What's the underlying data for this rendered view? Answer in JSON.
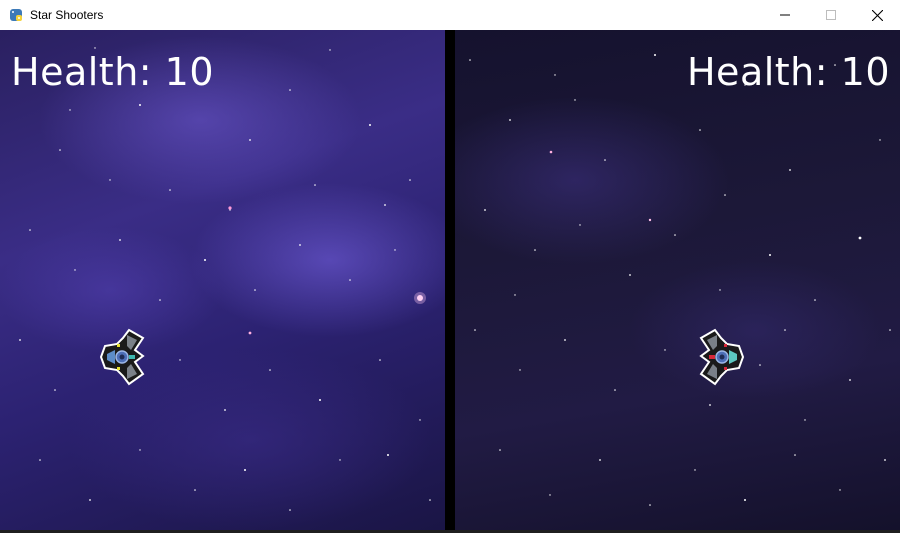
{
  "window": {
    "title": "Star Shooters",
    "icon": "python-icon",
    "controls": [
      "minimize-icon",
      "maximize-icon",
      "close-icon"
    ]
  },
  "game": {
    "player_left": {
      "health_text": "Health: 10",
      "ship_icon": "yellow-spaceship-icon",
      "accent_color": "#e8e230"
    },
    "player_right": {
      "health_text": "Health: 10",
      "ship_icon": "red-spaceship-icon",
      "accent_color": "#d6283a"
    },
    "colors": {
      "divider": "#000000",
      "text": "#ffffff",
      "left_background": "#3a2d86",
      "right_background": "#1c1838"
    }
  }
}
